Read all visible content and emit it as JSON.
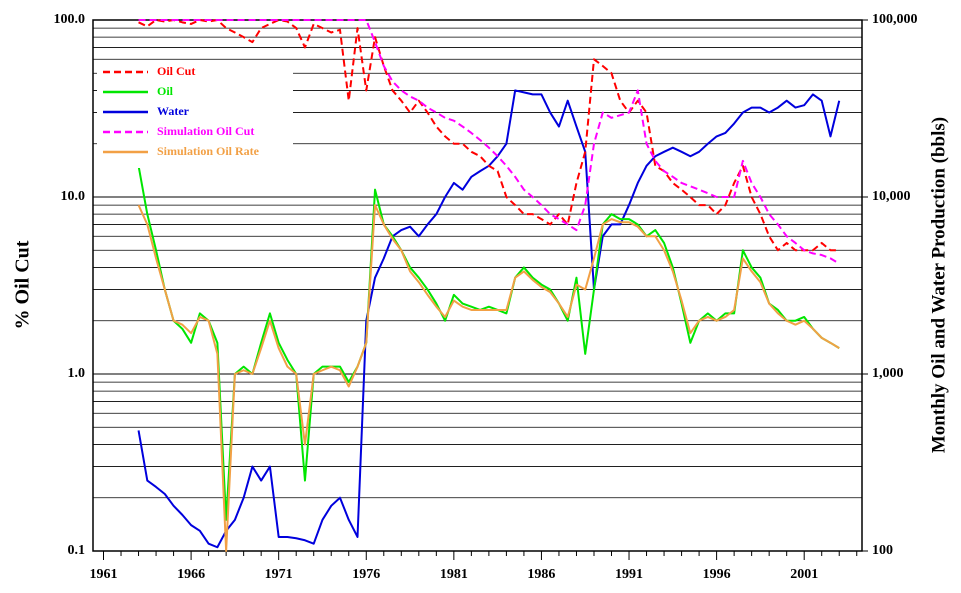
{
  "chart_data": {
    "type": "line",
    "y_label": "% Oil Cut",
    "y2_label": "Monthly Oil and Water Production (bbls)",
    "log_scale": true,
    "grid": true,
    "legend": "upper left",
    "xlim": [
      1960.4,
      2004.3
    ],
    "xticks": [
      1961,
      1966,
      1971,
      1976,
      1981,
      1986,
      1991,
      1996,
      2001
    ],
    "ylim": [
      0.1,
      100
    ],
    "yticks": [
      0.1,
      {
        "value": 1,
        "label": "1.0"
      },
      {
        "value": 10,
        "label": "10.0"
      },
      {
        "value": 100,
        "label": "100.0"
      }
    ],
    "y2lim": [
      100,
      100000
    ],
    "y2ticks": [
      100,
      {
        "value": 1000,
        "label": "1,000"
      },
      {
        "value": 10000,
        "label": "10,000"
      },
      {
        "value": 100000,
        "label": "100,000"
      }
    ],
    "x": [
      1963,
      1963.5,
      1964,
      1964.5,
      1965,
      1965.5,
      1966,
      1966.5,
      1967,
      1967.5,
      1968,
      1968.5,
      1969,
      1969.5,
      1970,
      1970.5,
      1971,
      1971.5,
      1972,
      1972.5,
      1973,
      1973.5,
      1974,
      1974.5,
      1975,
      1975.5,
      1976,
      1976.5,
      1977,
      1977.5,
      1978,
      1978.5,
      1979,
      1979.5,
      1980,
      1980.5,
      1981,
      1981.5,
      1982,
      1982.5,
      1983,
      1983.5,
      1984,
      1984.5,
      1985,
      1985.5,
      1986,
      1986.5,
      1987,
      1987.5,
      1988,
      1988.5,
      1989,
      1989.5,
      1990,
      1990.5,
      1991,
      1991.5,
      1992,
      1992.5,
      1993,
      1993.5,
      1994,
      1994.5,
      1995,
      1995.5,
      1996,
      1996.5,
      1997,
      1997.5,
      1998,
      1998.5,
      1999,
      1999.5,
      2000,
      2000.5,
      2001,
      2001.5,
      2002,
      2002.5,
      2003
    ],
    "series": [
      {
        "name": "Oil Cut",
        "color": "#ff0000",
        "style": "dashed",
        "axis": "y",
        "values": [
          97,
          92,
          100,
          98,
          100,
          97,
          95,
          100,
          98,
          100,
          90,
          85,
          80,
          75,
          90,
          95,
          100,
          98,
          90,
          70,
          95,
          90,
          85,
          88,
          35,
          90,
          40,
          80,
          55,
          40,
          35,
          30,
          35,
          30,
          25,
          22,
          20,
          20,
          18,
          17,
          15,
          14,
          10,
          9,
          8,
          8,
          7.5,
          7,
          8,
          7,
          12,
          18,
          60,
          55,
          50,
          35,
          30,
          35,
          30,
          15,
          14,
          12,
          11,
          10,
          9,
          9,
          8,
          9,
          12,
          15,
          10,
          8,
          6,
          5,
          5.5,
          5,
          5,
          5,
          5.5,
          5,
          5
        ]
      },
      {
        "name": "Oil",
        "color": "#00e600",
        "style": "solid",
        "axis": "y2",
        "values": [
          15000,
          8000,
          5000,
          3000,
          2000,
          1800,
          1500,
          2200,
          2000,
          1500,
          150,
          1000,
          1100,
          1000,
          1500,
          2200,
          1500,
          1200,
          1000,
          250,
          1000,
          1100,
          1100,
          1100,
          900,
          1100,
          1500,
          11000,
          7000,
          6000,
          5000,
          4000,
          3500,
          3000,
          2500,
          2000,
          2800,
          2500,
          2400,
          2300,
          2400,
          2300,
          2200,
          3500,
          4000,
          3500,
          3200,
          3000,
          2500,
          2000,
          3500,
          1300,
          3000,
          7000,
          8000,
          7500,
          7500,
          7000,
          6000,
          6500,
          5500,
          4000,
          2500,
          1500,
          2000,
          2200,
          2000,
          2200,
          2200,
          5000,
          4000,
          3500,
          2500,
          2300,
          2000,
          2000,
          2100,
          1800,
          1600,
          1500,
          1400
        ]
      },
      {
        "name": "Water",
        "color": "#0000dd",
        "style": "solid",
        "axis": "y2",
        "values": [
          480,
          250,
          230,
          210,
          180,
          160,
          140,
          130,
          110,
          105,
          130,
          150,
          200,
          300,
          250,
          300,
          120,
          120,
          118,
          115,
          110,
          150,
          180,
          200,
          150,
          120,
          2000,
          3500,
          4500,
          6000,
          6500,
          6800,
          6000,
          7000,
          8000,
          10000,
          12000,
          11000,
          13000,
          14000,
          15000,
          17000,
          20000,
          40000,
          39000,
          38000,
          38000,
          30000,
          25000,
          35000,
          25000,
          18000,
          3000,
          6000,
          7000,
          7000,
          9000,
          12000,
          15000,
          17000,
          18000,
          19000,
          18000,
          17000,
          18000,
          20000,
          22000,
          23000,
          26000,
          30000,
          32000,
          32000,
          30000,
          32000,
          35000,
          32000,
          33000,
          38000,
          35000,
          22000,
          35000
        ]
      },
      {
        "name": "Simulation Oil Cut",
        "color": "#ff00ff",
        "style": "dashed",
        "axis": "y",
        "values": [
          100,
          100,
          100,
          100,
          100,
          100,
          100,
          100,
          100,
          100,
          100,
          100,
          100,
          100,
          100,
          100,
          100,
          100,
          100,
          100,
          100,
          100,
          100,
          100,
          100,
          100,
          100,
          75,
          55,
          45,
          40,
          37,
          35,
          32,
          30,
          28,
          27,
          25,
          23,
          21,
          19,
          17,
          15,
          13,
          11,
          10,
          9,
          8,
          7.5,
          7,
          6.5,
          9,
          20,
          30,
          28,
          29,
          30,
          40,
          20,
          16,
          14,
          13,
          12,
          11.5,
          11,
          10.5,
          10,
          10,
          10,
          16,
          12,
          10,
          8,
          7,
          6,
          5.5,
          5,
          4.8,
          4.7,
          4.5,
          4.2
        ]
      },
      {
        "name": "Simulation Oil Rate",
        "color": "#f2a045",
        "style": "solid",
        "axis": "y2",
        "values": [
          9000,
          7000,
          4500,
          3000,
          2000,
          1900,
          1700,
          2100,
          2000,
          1300,
          100,
          1000,
          1050,
          1000,
          1400,
          2000,
          1400,
          1100,
          1000,
          400,
          1000,
          1050,
          1100,
          1050,
          850,
          1100,
          1500,
          9000,
          7000,
          5800,
          5000,
          3800,
          3300,
          2800,
          2400,
          2100,
          2600,
          2400,
          2300,
          2300,
          2300,
          2300,
          2300,
          3500,
          3800,
          3400,
          3100,
          2900,
          2500,
          2100,
          3200,
          3000,
          4500,
          7000,
          7500,
          7200,
          7200,
          6800,
          6000,
          6000,
          5000,
          3800,
          2600,
          1700,
          2000,
          2100,
          2000,
          2100,
          2300,
          4500,
          3800,
          3300,
          2500,
          2200,
          2000,
          1900,
          2000,
          1800,
          1600,
          1500,
          1400
        ]
      }
    ]
  }
}
